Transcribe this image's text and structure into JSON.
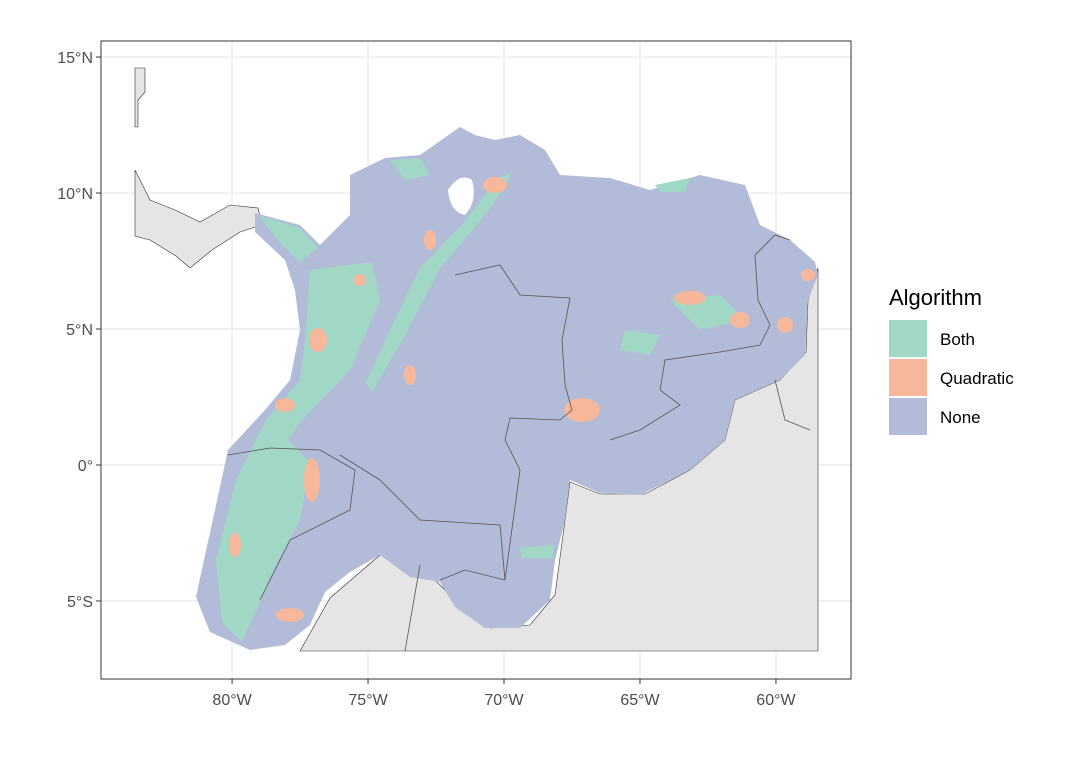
{
  "chart_data": {
    "type": "map",
    "xlim": [
      -84.82,
      -57.24
    ],
    "ylim": [
      -7.87,
      15.59
    ],
    "xticks": [
      {
        "value": -80,
        "label": "80°W"
      },
      {
        "value": -75,
        "label": "75°W"
      },
      {
        "value": -70,
        "label": "70°W"
      },
      {
        "value": -65,
        "label": "65°W"
      },
      {
        "value": -60,
        "label": "60°W"
      }
    ],
    "yticks": [
      {
        "value": 15,
        "label": "15°N"
      },
      {
        "value": 10,
        "label": "10°N"
      },
      {
        "value": 5,
        "label": "5°N"
      },
      {
        "value": 0,
        "label": "0°"
      },
      {
        "value": -5,
        "label": "5°S"
      }
    ],
    "grid": true,
    "legend_title": "Algorithm",
    "legend_position": "right",
    "series": [
      {
        "name": "Both",
        "color": "#a0d8c5"
      },
      {
        "name": "Quadratic",
        "color": "#f7b79b"
      },
      {
        "name": "None",
        "color": "#b2bcd8"
      }
    ]
  }
}
